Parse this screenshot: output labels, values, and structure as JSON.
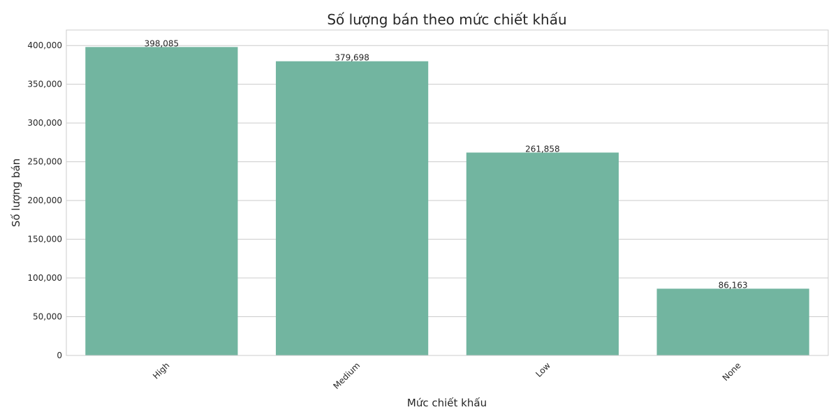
{
  "chart_data": {
    "type": "bar",
    "title": "Số lượng bán theo mức chiết khấu",
    "xlabel": "Mức chiết khấu",
    "ylabel": "Số lượng bán",
    "categories": [
      "High",
      "Medium",
      "Low",
      "None"
    ],
    "values": [
      398085,
      379698,
      261858,
      86163
    ],
    "value_labels": [
      "398,085",
      "379,698",
      "261,858",
      "86,163"
    ],
    "ylim": [
      0,
      420000
    ],
    "yticks": [
      0,
      50000,
      100000,
      150000,
      200000,
      250000,
      300000,
      350000,
      400000
    ],
    "ytick_labels": [
      "0",
      "50,000",
      "100,000",
      "150,000",
      "200,000",
      "250,000",
      "300,000",
      "350,000",
      "400,000"
    ],
    "grid": "horizontal",
    "legend": "none",
    "bar_color": "#72b5a0",
    "x_tick_rotation_deg": 45
  }
}
